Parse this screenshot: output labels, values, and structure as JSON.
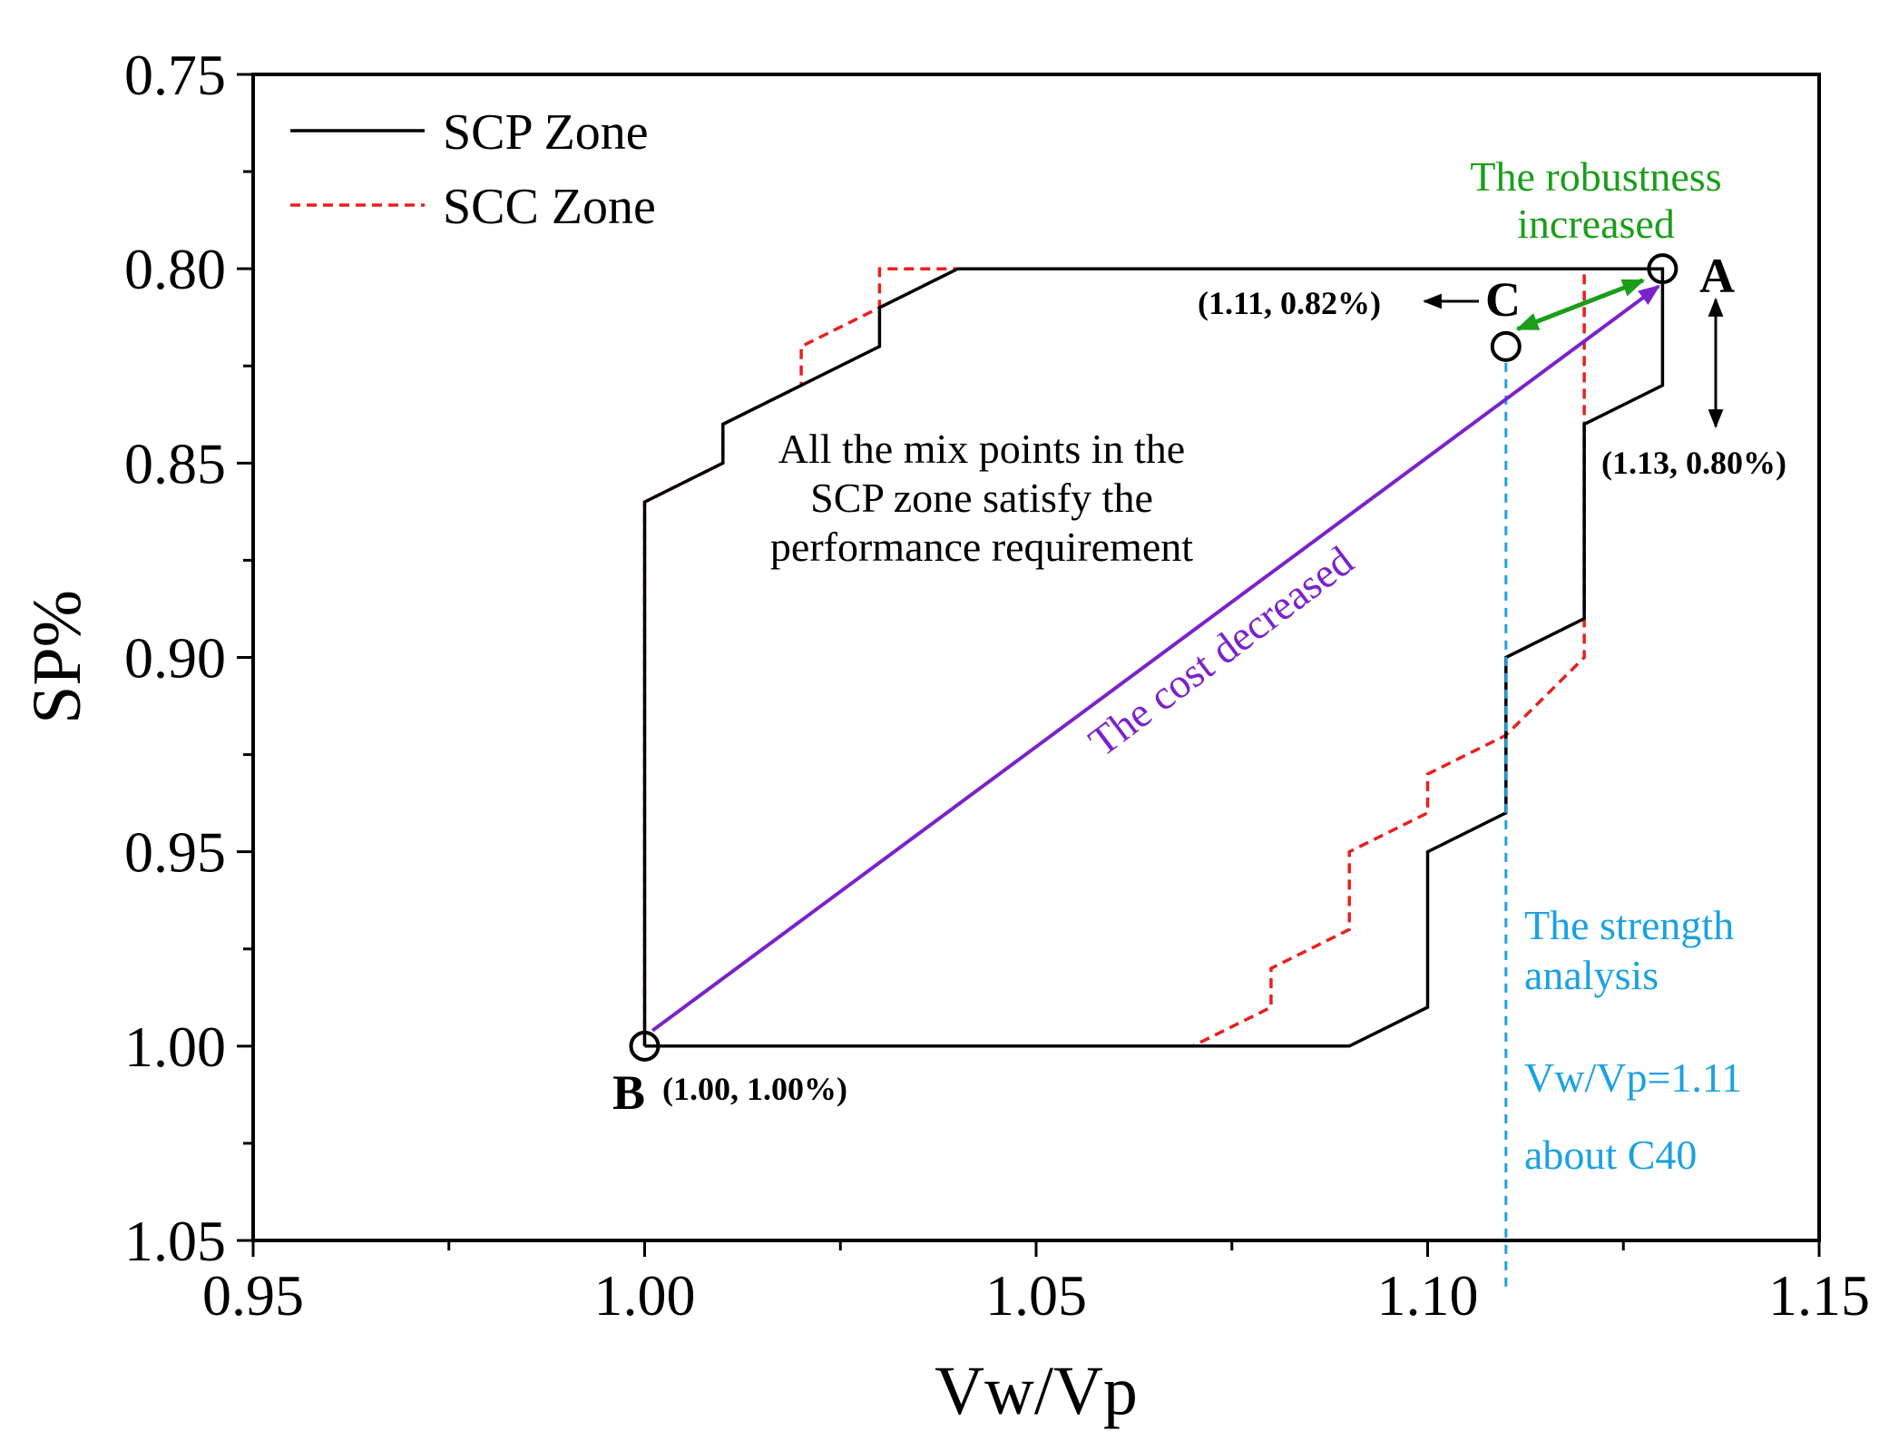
{
  "chart_data": {
    "type": "line",
    "xlabel": "Vw/Vp",
    "ylabel": "SP%",
    "xlim": [
      0.95,
      1.15
    ],
    "ylim": [
      0.75,
      1.05
    ],
    "y_inverted": true,
    "x_ticks": [
      "0.95",
      "1.00",
      "1.05",
      "1.10",
      "1.15"
    ],
    "y_ticks": [
      "0.75",
      "0.80",
      "0.85",
      "0.90",
      "0.95",
      "1.00",
      "1.05"
    ],
    "legend_position": "top-left",
    "series": [
      {
        "name": "SCP Zone",
        "style": "solid",
        "color": "#000000",
        "points": [
          [
            1.0,
            1.0
          ],
          [
            1.0,
            0.86
          ],
          [
            1.01,
            0.85
          ],
          [
            1.01,
            0.84
          ],
          [
            1.03,
            0.82
          ],
          [
            1.03,
            0.81
          ],
          [
            1.04,
            0.8
          ],
          [
            1.13,
            0.8
          ],
          [
            1.13,
            0.83
          ],
          [
            1.12,
            0.84
          ],
          [
            1.12,
            0.89
          ],
          [
            1.11,
            0.9
          ],
          [
            1.11,
            0.94
          ],
          [
            1.1,
            0.95
          ],
          [
            1.1,
            0.99
          ],
          [
            1.09,
            1.0
          ],
          [
            1.0,
            1.0
          ]
        ]
      },
      {
        "name": "SCC Zone",
        "style": "dashed",
        "color": "#e8201e",
        "points": [
          [
            1.0,
            1.0
          ],
          [
            1.0,
            0.86
          ],
          [
            1.01,
            0.85
          ],
          [
            1.01,
            0.84
          ],
          [
            1.02,
            0.83
          ],
          [
            1.02,
            0.82
          ],
          [
            1.03,
            0.81
          ],
          [
            1.03,
            0.8
          ],
          [
            1.12,
            0.8
          ],
          [
            1.12,
            0.9
          ],
          [
            1.11,
            0.92
          ],
          [
            1.1,
            0.93
          ],
          [
            1.1,
            0.94
          ],
          [
            1.09,
            0.95
          ],
          [
            1.09,
            0.97
          ],
          [
            1.08,
            0.98
          ],
          [
            1.08,
            0.99
          ],
          [
            1.07,
            1.0
          ],
          [
            1.0,
            1.0
          ]
        ]
      }
    ],
    "points": [
      {
        "name": "A",
        "x": 1.13,
        "y": 0.8,
        "label": "A",
        "coord_label": "(1.13, 0.80%)"
      },
      {
        "name": "B",
        "x": 1.0,
        "y": 1.0,
        "label": "B",
        "coord_label": "(1.00, 1.00%)"
      },
      {
        "name": "C",
        "x": 1.11,
        "y": 0.82,
        "label": "C",
        "coord_label": "(1.11, 0.82%)"
      }
    ],
    "vertical_line": {
      "x": 1.11,
      "color": "#1ba1e2"
    },
    "cost_arrow": {
      "from": [
        1.001,
        0.996
      ],
      "to": [
        1.1295,
        0.8045
      ],
      "color": "#7a22cc"
    },
    "robustness_arrow": {
      "from": [
        1.1275,
        0.803
      ],
      "to": [
        1.1115,
        0.8155
      ],
      "color": "#1a9e1a"
    },
    "annotations": {
      "zone_note_lines": [
        "All the mix points in the",
        "SCP zone satisfy the",
        "performance requirement"
      ],
      "cost_text": "The cost decreased",
      "robustness_lines": [
        "The robustness",
        "increased"
      ],
      "strength_lines": [
        "The strength",
        "analysis"
      ],
      "ratio_text": "Vw/Vp=1.11",
      "grade_text": "about C40"
    },
    "colors": {
      "scp": "#000000",
      "scc": "#e8201e",
      "cost": "#7a22cc",
      "robustness": "#1a9e1a",
      "strength": "#1ba1e2"
    }
  }
}
